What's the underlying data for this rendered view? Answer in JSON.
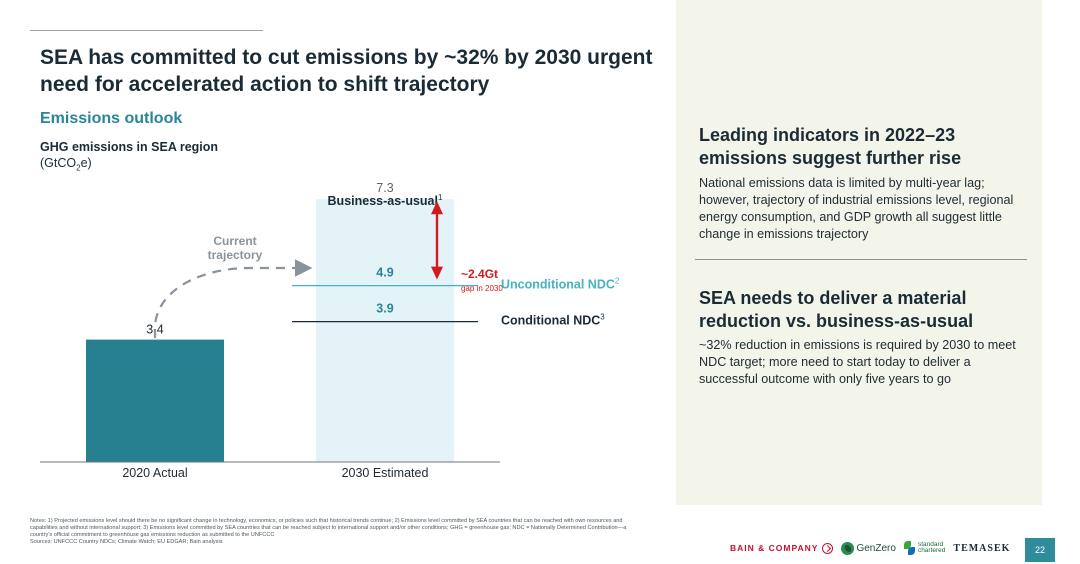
{
  "slide": {
    "title": "SEA has committed to cut emissions by ~32% by 2030 urgent need for accelerated action to shift trajectory",
    "subtitle": "Emissions outlook",
    "page_number": "22",
    "notes": [
      "Notes: 1) Projected emissions level should there be no significant change in technology, economics, or policies such that historical trends continue; 2) Emissions level committed by SEA countries that can be reached with own resources and capabilities and without international support; 3) Emissions level committed by SEA countries that can be reached subject to international support and/or other conditions; GHG = greenhouse gas; NDC = Nationally Determined Contribution—a country's official commitment to greenhouse gas emissions reduction as submitted to the UNFCCC",
      "Sources: UNFCCC Country NDCs; Climate Watch; EU EDGAR; Bain analysis"
    ]
  },
  "chart_data": {
    "type": "bar",
    "title": "GHG emissions in SEA region",
    "unit_prefix": "(GtCO",
    "unit_sub": "2",
    "unit_suffix": "e)",
    "categories": [
      "2020 Actual",
      "2030 Estimated"
    ],
    "values": [
      3.4,
      7.3
    ],
    "value_labels": [
      "3.4",
      "7.3"
    ],
    "bau_label": "Business-as-usual",
    "bau_sup": "1",
    "ylim": [
      0,
      10
    ],
    "reference_lines": [
      {
        "name": "Unconditional NDC",
        "sup": "2",
        "value": 4.9,
        "label": "4.9",
        "color": "#45b3c4"
      },
      {
        "name": "Conditional NDC",
        "sup": "3",
        "value": 3.9,
        "label": "3.9",
        "color": "#1b2b36"
      }
    ],
    "gap": {
      "label": "~2.4Gt",
      "sublabel": "gap in 2030",
      "from": 7.3,
      "to": 4.9,
      "color": "#d01c1f"
    },
    "trajectory_label": [
      "Current",
      "trajectory"
    ],
    "colors": {
      "actual": "#26808f",
      "estimated": "#e3f3f7",
      "teal_text": "#2a8596",
      "gray_text": "#8a939a"
    }
  },
  "side": {
    "indicators_title": "Leading indicators in 2022–23 emissions suggest further rise",
    "indicators_body": "National emissions data is limited by multi-year lag; however, trajectory of industrial emissions level, regional energy consumption, and GDP growth all suggest little change in emissions trajectory",
    "reduction_title": "SEA needs to deliver a material reduction vs. business-as-usual",
    "reduction_body": "~32% reduction in emissions is required by 2030 to meet NDC target; more need to start today to deliver a successful outcome with only five years to go"
  },
  "logos": {
    "bain": "BAIN & COMPANY",
    "genzero": "GenZero",
    "sc_line1": "standard",
    "sc_line2": "chartered",
    "temasek": "TEMASEK"
  }
}
